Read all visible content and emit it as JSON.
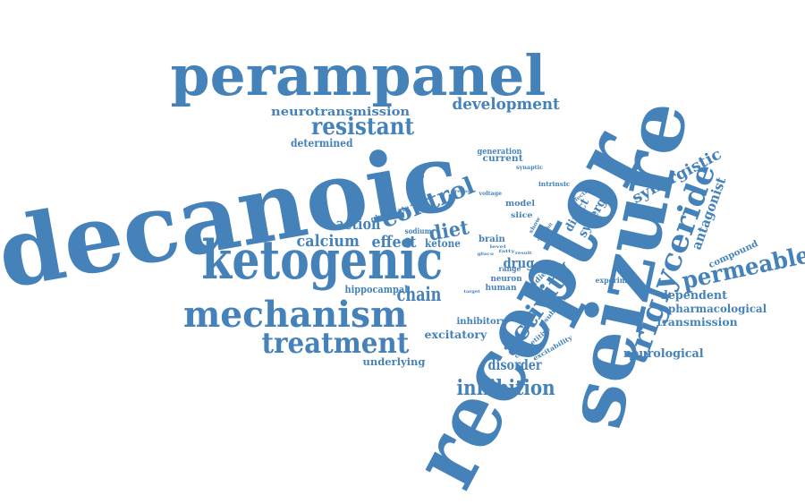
{
  "color": "#4582b9",
  "words": [
    {
      "key": "receptor",
      "text": "receptor"
    },
    {
      "key": "decanoic",
      "text": "decanoic"
    },
    {
      "key": "seizure",
      "text": "seizure"
    },
    {
      "key": "perampanel",
      "text": "perampanel"
    },
    {
      "key": "ketogenic",
      "text": "ketogenic"
    },
    {
      "key": "mechanism",
      "text": "mechanism"
    },
    {
      "key": "triglyceride",
      "text": "triglyceride"
    },
    {
      "key": "treatment",
      "text": "treatment"
    },
    {
      "key": "control",
      "text": "control"
    },
    {
      "key": "permeable",
      "text": "permeable"
    },
    {
      "key": "activity",
      "text": "activity"
    },
    {
      "key": "resistant",
      "text": "resistant"
    },
    {
      "key": "inhibition",
      "text": "inhibition"
    },
    {
      "key": "development",
      "text": "development"
    },
    {
      "key": "diet",
      "text": "diet"
    },
    {
      "key": "synergistic",
      "text": "synergistic"
    },
    {
      "key": "chain",
      "text": "chain"
    },
    {
      "key": "calcium",
      "text": "calcium"
    },
    {
      "key": "action",
      "text": "action"
    },
    {
      "key": "effect",
      "text": "effect"
    },
    {
      "key": "antagonist",
      "text": "antagonist"
    },
    {
      "key": "disorder",
      "text": "disorder"
    },
    {
      "key": "neurotransmission",
      "text": "neurotransmission"
    },
    {
      "key": "determined",
      "text": "determined"
    },
    {
      "key": "ketone",
      "text": "ketone"
    },
    {
      "key": "drug",
      "text": "drug"
    },
    {
      "key": "synergy",
      "text": "synergy"
    },
    {
      "key": "direct",
      "text": "direct"
    },
    {
      "key": "dependent",
      "text": "dependent"
    },
    {
      "key": "pharmacological",
      "text": "pharmacological"
    },
    {
      "key": "transmission",
      "text": "transmission"
    },
    {
      "key": "neurological",
      "text": "neurological"
    },
    {
      "key": "excitatory",
      "text": "excitatory"
    },
    {
      "key": "inhibitory",
      "text": "inhibitory"
    },
    {
      "key": "underlying",
      "text": "underlying"
    },
    {
      "key": "hippocampal",
      "text": "hippocampal"
    },
    {
      "key": "compound",
      "text": "compound"
    },
    {
      "key": "current",
      "text": "current"
    },
    {
      "key": "generation",
      "text": "generation"
    },
    {
      "key": "model",
      "text": "model"
    },
    {
      "key": "slice",
      "text": "slice"
    },
    {
      "key": "brain",
      "text": "brain"
    },
    {
      "key": "change",
      "text": "change"
    },
    {
      "key": "glutamate",
      "text": "glutamate"
    },
    {
      "key": "sodium",
      "text": "sodium"
    },
    {
      "key": "neuron",
      "text": "neuron"
    },
    {
      "key": "human",
      "text": "human"
    },
    {
      "key": "range",
      "text": "range"
    },
    {
      "key": "experiment",
      "text": "experiment"
    },
    {
      "key": "studies",
      "text": "studies"
    },
    {
      "key": "subunit",
      "text": "subunit"
    },
    {
      "key": "competitive",
      "text": "competitive"
    },
    {
      "key": "excitability",
      "text": "excitability"
    },
    {
      "key": "intrinsic",
      "text": "intrinsic"
    },
    {
      "key": "synaptic",
      "text": "synaptic"
    },
    {
      "key": "effective",
      "text": "effective"
    },
    {
      "key": "voltage",
      "text": "voltage"
    },
    {
      "key": "reduce",
      "text": "reduce"
    },
    {
      "key": "show",
      "text": "show"
    },
    {
      "key": "inhibit",
      "text": "inhibit"
    },
    {
      "key": "central",
      "text": "central"
    },
    {
      "key": "fatty",
      "text": "fatty"
    },
    {
      "key": "gluco",
      "text": "gluco"
    },
    {
      "key": "level",
      "text": "level"
    },
    {
      "key": "result",
      "text": "result"
    },
    {
      "key": "target",
      "text": "target"
    }
  ]
}
